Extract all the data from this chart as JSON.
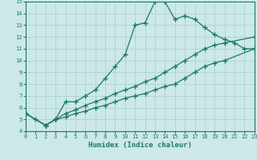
{
  "xlabel": "Humidex (Indice chaleur)",
  "ylabel": "",
  "bg_color": "#cce8e8",
  "line_color": "#1a7a6a",
  "grid_color": "#aacece",
  "xlim": [
    0,
    23
  ],
  "ylim": [
    4,
    15
  ],
  "xticks": [
    0,
    1,
    2,
    3,
    4,
    5,
    6,
    7,
    8,
    9,
    10,
    11,
    12,
    13,
    14,
    15,
    16,
    17,
    18,
    19,
    20,
    21,
    22,
    23
  ],
  "yticks": [
    4,
    5,
    6,
    7,
    8,
    9,
    10,
    11,
    12,
    13,
    14,
    15
  ],
  "line1_x": [
    0,
    1,
    2,
    3,
    4,
    5,
    6,
    7,
    8,
    9,
    10,
    11,
    12,
    13,
    14,
    15,
    16,
    17,
    18,
    19,
    20,
    21,
    22,
    23
  ],
  "line1_y": [
    5.5,
    5.0,
    4.5,
    5.0,
    6.5,
    6.5,
    7.0,
    7.5,
    8.5,
    9.5,
    10.5,
    13.0,
    13.2,
    15.0,
    15.0,
    13.5,
    13.8,
    13.5,
    12.8,
    12.2,
    11.8,
    11.5,
    11.0,
    11.0
  ],
  "line2_x": [
    0,
    2,
    3,
    4,
    5,
    6,
    7,
    8,
    9,
    10,
    11,
    12,
    13,
    14,
    15,
    16,
    17,
    18,
    19,
    20,
    23
  ],
  "line2_y": [
    5.5,
    4.5,
    5.0,
    5.5,
    5.8,
    6.2,
    6.5,
    6.8,
    7.2,
    7.5,
    7.8,
    8.2,
    8.5,
    9.0,
    9.5,
    10.0,
    10.5,
    11.0,
    11.3,
    11.5,
    12.0
  ],
  "line3_x": [
    0,
    2,
    3,
    4,
    5,
    6,
    7,
    8,
    9,
    10,
    11,
    12,
    13,
    14,
    15,
    16,
    17,
    18,
    19,
    20,
    23
  ],
  "line3_y": [
    5.5,
    4.5,
    5.0,
    5.2,
    5.5,
    5.7,
    6.0,
    6.2,
    6.5,
    6.8,
    7.0,
    7.2,
    7.5,
    7.8,
    8.0,
    8.5,
    9.0,
    9.5,
    9.8,
    10.0,
    11.0
  ],
  "marker": "+",
  "marker_size": 4,
  "line_width": 0.9
}
